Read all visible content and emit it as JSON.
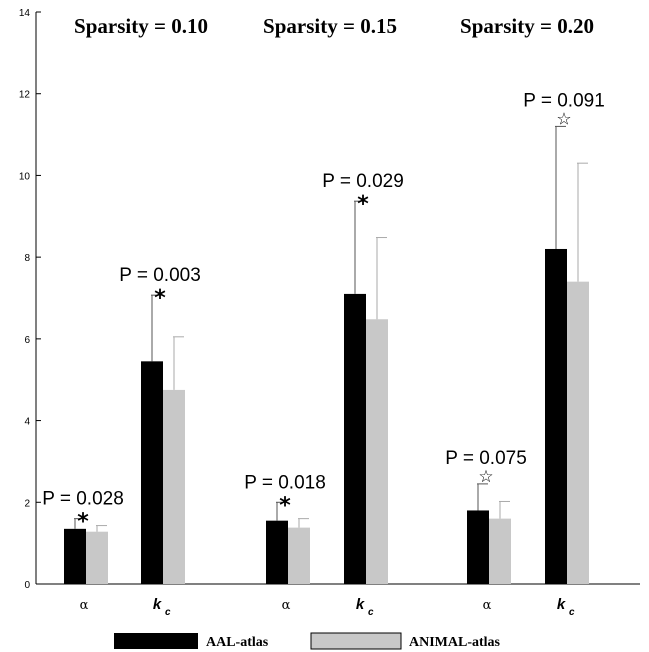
{
  "chart_data": {
    "type": "bar",
    "ylim": [
      0,
      14
    ],
    "yticks": [
      "0",
      "2",
      "4",
      "6",
      "8",
      "10",
      "12",
      "14"
    ],
    "colors": {
      "aal": "#000000",
      "animal": "#c8c8c8",
      "error_aal": "#555555",
      "error_animal": "#aaaaaa"
    },
    "legend": {
      "aal": "AAL-atlas",
      "animal": "ANIMAL-atlas"
    },
    "groups": [
      {
        "title": "Sparsity = 0.10",
        "categories": [
          {
            "label": "α",
            "sub": "",
            "aal": 1.35,
            "aal_err": 0.25,
            "animal": 1.28,
            "animal_err": 0.15,
            "pvalue": "P = 0.028",
            "marker": "*"
          },
          {
            "label": "k",
            "sub": "c",
            "aal": 5.45,
            "aal_err": 1.62,
            "animal": 4.75,
            "animal_err": 1.3,
            "pvalue": "P = 0.003",
            "marker": "*"
          }
        ]
      },
      {
        "title": "Sparsity = 0.15",
        "categories": [
          {
            "label": "α",
            "sub": "",
            "aal": 1.55,
            "aal_err": 0.45,
            "animal": 1.38,
            "animal_err": 0.22,
            "pvalue": "P = 0.018",
            "marker": "*"
          },
          {
            "label": "k",
            "sub": "c",
            "aal": 7.1,
            "aal_err": 2.27,
            "animal": 6.48,
            "animal_err": 2.0,
            "pvalue": "P = 0.029",
            "marker": "*"
          }
        ]
      },
      {
        "title": "Sparsity = 0.20",
        "categories": [
          {
            "label": "α",
            "sub": "",
            "aal": 1.8,
            "aal_err": 0.65,
            "animal": 1.6,
            "animal_err": 0.42,
            "pvalue": "P = 0.075",
            "marker": "☆"
          },
          {
            "label": "k",
            "sub": "c",
            "aal": 8.2,
            "aal_err": 3.0,
            "animal": 7.4,
            "animal_err": 2.9,
            "pvalue": "P = 0.091",
            "marker": "☆"
          }
        ]
      }
    ]
  }
}
